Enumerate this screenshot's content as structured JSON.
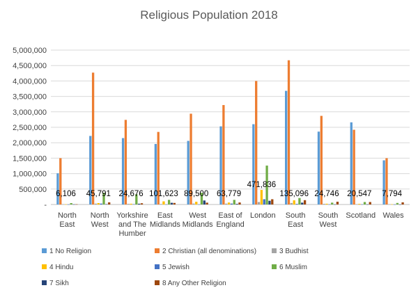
{
  "chart_data": {
    "type": "bar",
    "title": "Religious Population 2018",
    "xlabel": "",
    "ylabel": "",
    "ylim": [
      0,
      5000000
    ],
    "yticks": [
      "-",
      "500,000",
      "1,000,000",
      "1,500,000",
      "2,000,000",
      "2,500,000",
      "3,000,000",
      "3,500,000",
      "4,000,000",
      "4,500,000",
      "5,000,000"
    ],
    "grid": true,
    "legend_position": "bottom",
    "categories": [
      [
        "North",
        "East"
      ],
      [
        "North",
        "West"
      ],
      [
        "Yorkshire",
        "and The",
        "Humber"
      ],
      [
        "East",
        "Midlands"
      ],
      [
        "West",
        "Midlands"
      ],
      [
        "East of",
        "England"
      ],
      [
        "London"
      ],
      [
        "South",
        "East"
      ],
      [
        "South",
        "West"
      ],
      [
        "Scotland"
      ],
      [
        "Wales"
      ]
    ],
    "series": [
      {
        "name": "1 No Religion",
        "color": "#5B9BD5",
        "values": [
          1010000,
          2220000,
          2150000,
          1960000,
          2060000,
          2530000,
          2600000,
          3680000,
          2360000,
          2660000,
          1430000
        ]
      },
      {
        "name": "2 Christian (all denominations)",
        "color": "#ED7D31",
        "values": [
          1500000,
          4270000,
          2740000,
          2350000,
          2940000,
          3220000,
          4000000,
          4670000,
          2870000,
          2420000,
          1500000
        ]
      },
      {
        "name": "3 Budhist",
        "color": "#A5A5A5",
        "values": [
          8000,
          28000,
          20000,
          17000,
          30000,
          28000,
          80000,
          48000,
          22000,
          12000,
          8000
        ]
      },
      {
        "name": "4 Hindu",
        "color": "#FFC000",
        "values": [
          6106,
          45791,
          24676,
          101623,
          89500,
          63779,
          471836,
          135096,
          24746,
          20547,
          7794
        ]
      },
      {
        "name": "5 Jewish",
        "color": "#4472C4",
        "values": [
          4000,
          30000,
          12000,
          5000,
          5000,
          30000,
          170000,
          20000,
          6000,
          6000,
          2000
        ]
      },
      {
        "name": "6 Muslim",
        "color": "#70AD47",
        "values": [
          45000,
          380000,
          330000,
          150000,
          380000,
          150000,
          1260000,
          210000,
          60000,
          80000,
          50000
        ]
      },
      {
        "name": "7 Sikh",
        "color": "#264478",
        "values": [
          6000,
          12000,
          25000,
          55000,
          130000,
          20000,
          120000,
          60000,
          5000,
          5000,
          3000
        ]
      },
      {
        "name": "8 Any Other Religion",
        "color": "#9E480E",
        "values": [
          7000,
          70000,
          40000,
          50000,
          60000,
          65000,
          170000,
          140000,
          90000,
          80000,
          70000
        ]
      }
    ],
    "data_labels": {
      "series": "4 Hindu",
      "values": [
        "6,106",
        "45,791",
        "24,676",
        "101,623",
        "89,500",
        "63,779",
        "471,836",
        "135,096",
        "24,746",
        "20,547",
        "7,794"
      ]
    }
  }
}
